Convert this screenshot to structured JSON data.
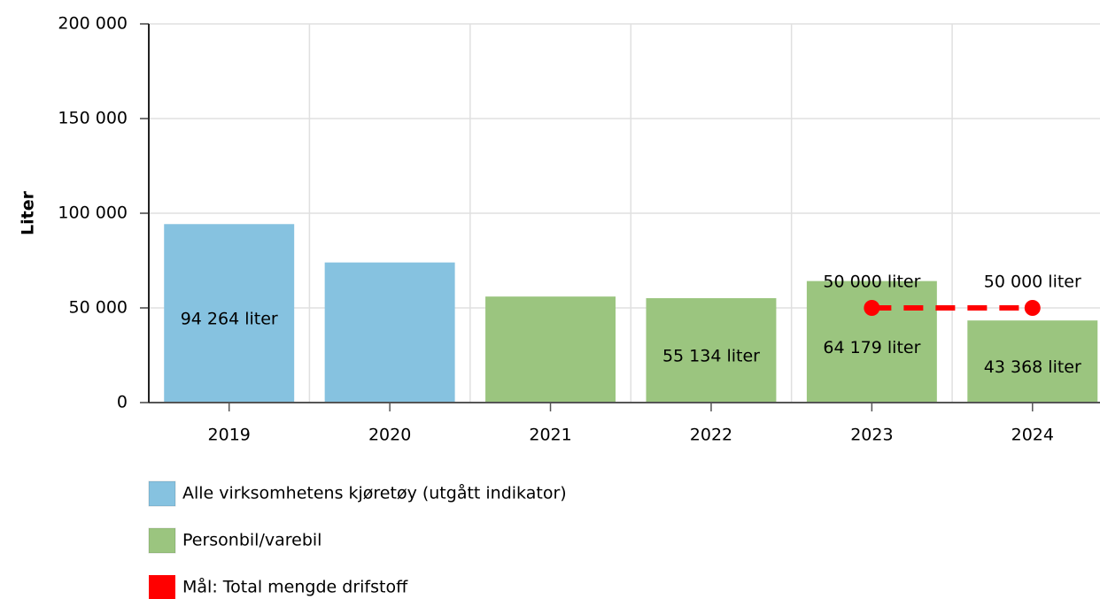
{
  "chart_data": {
    "type": "bar",
    "y_label": "Liter",
    "categories": [
      "2019",
      "2020",
      "2021",
      "2022",
      "2023",
      "2024"
    ],
    "series": [
      {
        "name": "Alle virksomhetens kjøretøy (utgått indikator)",
        "type": "bar",
        "color": "#86c2e0",
        "values": [
          94264,
          74000,
          null,
          null,
          null,
          null
        ],
        "value_labels": [
          "94 264 liter",
          null,
          null,
          null,
          null,
          null
        ]
      },
      {
        "name": "Personbil/varebil",
        "type": "bar",
        "color": "#9bc57f",
        "values": [
          null,
          null,
          56000,
          55134,
          64179,
          43368
        ],
        "value_labels": [
          null,
          null,
          null,
          "55 134 liter",
          "64 179 liter",
          "43 368 liter"
        ]
      },
      {
        "name": "Mål: Total mengde drifstoff",
        "type": "line",
        "color": "#ff0000",
        "dashed": true,
        "values": [
          null,
          null,
          null,
          null,
          50000,
          50000
        ],
        "value_labels": [
          null,
          null,
          null,
          null,
          "50 000 liter",
          "50 000 liter"
        ]
      }
    ],
    "ylim": [
      0,
      200000
    ],
    "yticks": [
      0,
      {
        "value": 50000,
        "label": "50 000"
      },
      {
        "value": 100000,
        "label": "100 000"
      },
      {
        "value": 150000,
        "label": "150 000"
      },
      {
        "value": 200000,
        "label": "200 000"
      }
    ],
    "grid": true
  }
}
